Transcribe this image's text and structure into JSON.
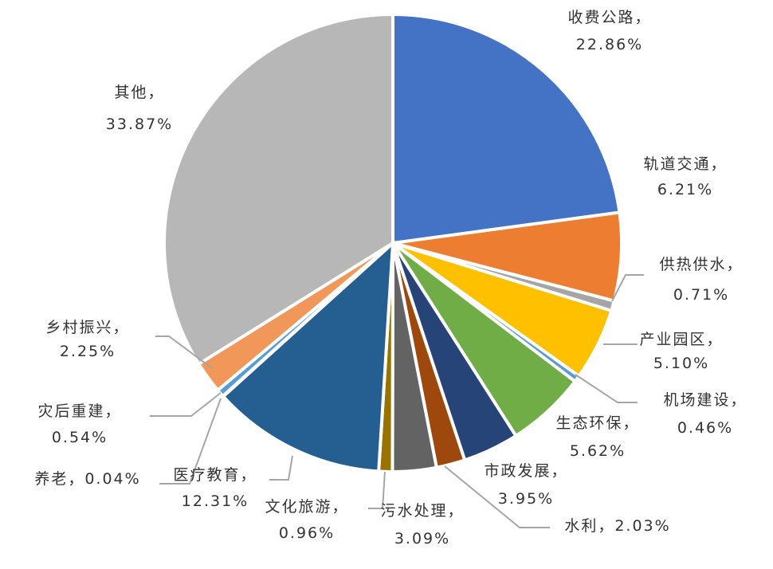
{
  "chart_data": {
    "type": "pie",
    "title": "",
    "start_angle": "top",
    "direction": "clockwise",
    "slices": [
      {
        "label": "收费公路",
        "value": 22.86,
        "text": "22.86%",
        "color": "#4472C4"
      },
      {
        "label": "轨道交通",
        "value": 6.21,
        "text": "6.21%",
        "color": "#ED7D31"
      },
      {
        "label": "供热供水",
        "value": 0.71,
        "text": "0.71%",
        "color": "#A5A5A5"
      },
      {
        "label": "产业园区",
        "value": 5.1,
        "text": "5.10%",
        "color": "#FFC000"
      },
      {
        "label": "机场建设",
        "value": 0.46,
        "text": "0.46%",
        "color": "#5B9BD5"
      },
      {
        "label": "生态环保",
        "value": 5.62,
        "text": "5.62%",
        "color": "#70AD47"
      },
      {
        "label": "市政发展",
        "value": 3.95,
        "text": "3.95%",
        "color": "#264478"
      },
      {
        "label": "水利",
        "value": 2.03,
        "text": "2.03%",
        "color": "#9E480E"
      },
      {
        "label": "污水处理",
        "value": 3.09,
        "text": "3.09%",
        "color": "#636363"
      },
      {
        "label": "文化旅游",
        "value": 0.96,
        "text": "0.96%",
        "color": "#997300"
      },
      {
        "label": "医疗教育",
        "value": 12.31,
        "text": "12.31%",
        "color": "#255E91"
      },
      {
        "label": "养老",
        "value": 0.04,
        "text": "0.04%",
        "color": "#43682B"
      },
      {
        "label": "灾后重建",
        "value": 0.54,
        "text": "0.54%",
        "color": "#5B9BD5"
      },
      {
        "label": "乡村振兴",
        "value": 2.25,
        "text": "2.25%",
        "color": "#F1975A"
      },
      {
        "label": "其他",
        "value": 33.87,
        "text": "33.87%",
        "color": "#B7B7B7"
      }
    ]
  }
}
